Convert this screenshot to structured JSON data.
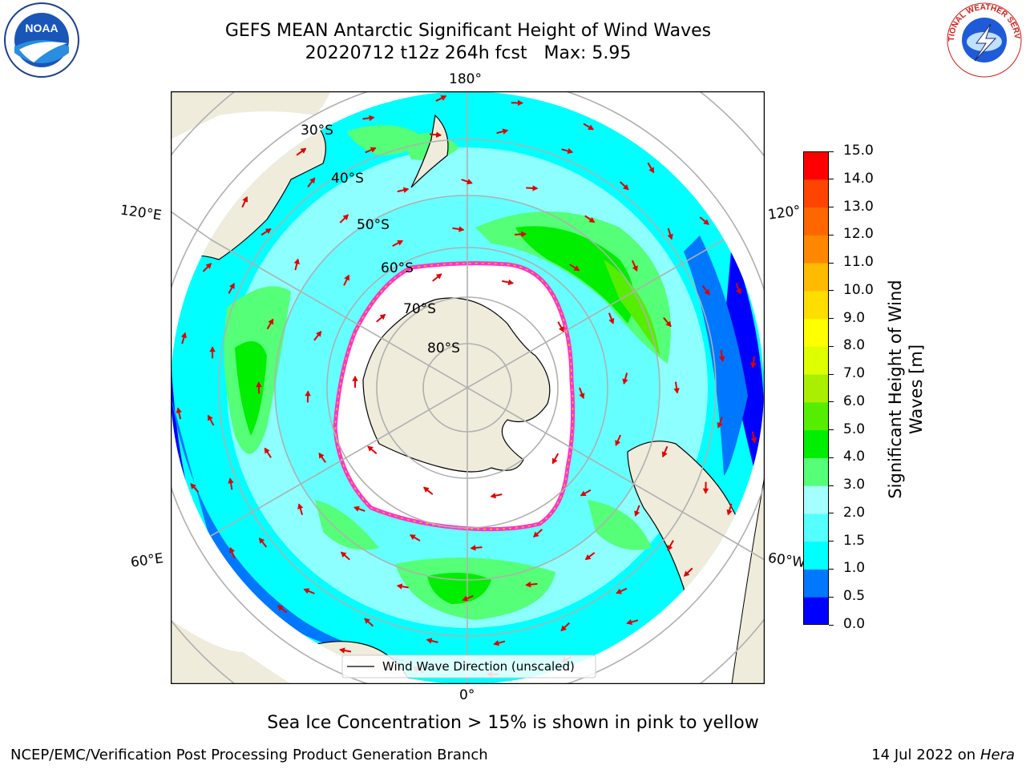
{
  "title": {
    "line1": "GEFS MEAN Antarctic Significant Height of Wind Waves",
    "line2": "20220712 t12z 264h fcst   Max: 5.95"
  },
  "map": {
    "projection": "south-polar-stereographic",
    "longitude_labels": {
      "top": "180°",
      "bottom": "0°",
      "upper_left": "120°E",
      "lower_left": "60°E",
      "upper_right": "120°",
      "lower_right": "60°W"
    },
    "latitude_labels": [
      "30°S",
      "40°S",
      "50°S",
      "60°S",
      "70°S",
      "80°S"
    ],
    "legend": {
      "line_label": "Wind Wave Direction (unscaled)"
    },
    "colors": {
      "land": "#efecdc",
      "ice_edge": "#ff33cc",
      "ice_fill": "#ffffff",
      "arrow": "#ff0000",
      "grid": "#b0b0b0"
    }
  },
  "colorbar": {
    "label_line1": "Significant Height of Wind",
    "label_line2": "Waves [m]",
    "ticks": [
      "0.0",
      "0.5",
      "1.0",
      "1.5",
      "2.0",
      "3.0",
      "4.0",
      "5.0",
      "6.0",
      "7.0",
      "8.0",
      "9.0",
      "10.0",
      "11.0",
      "12.0",
      "13.0",
      "14.0",
      "15.0"
    ],
    "colors": [
      "#0000ff",
      "#0077ff",
      "#00ffff",
      "#55ffff",
      "#a6ffff",
      "#55ff77",
      "#00ee00",
      "#55ee00",
      "#aaee00",
      "#ddff00",
      "#ffff00",
      "#ffdd00",
      "#ffbb00",
      "#ff8800",
      "#ff6600",
      "#ff4400",
      "#ff0000"
    ]
  },
  "caption": "Sea Ice Concentration > 15% is shown in pink to yellow",
  "footer": {
    "left": "NCEP/EMC/Verification Post Processing Product Generation Branch",
    "right_prefix": "14 Jul 2022 on ",
    "right_italic": "Hera"
  },
  "logos": {
    "noaa_text": "NOAA",
    "nws_text": "NATIONAL WEATHER SERVICE"
  }
}
